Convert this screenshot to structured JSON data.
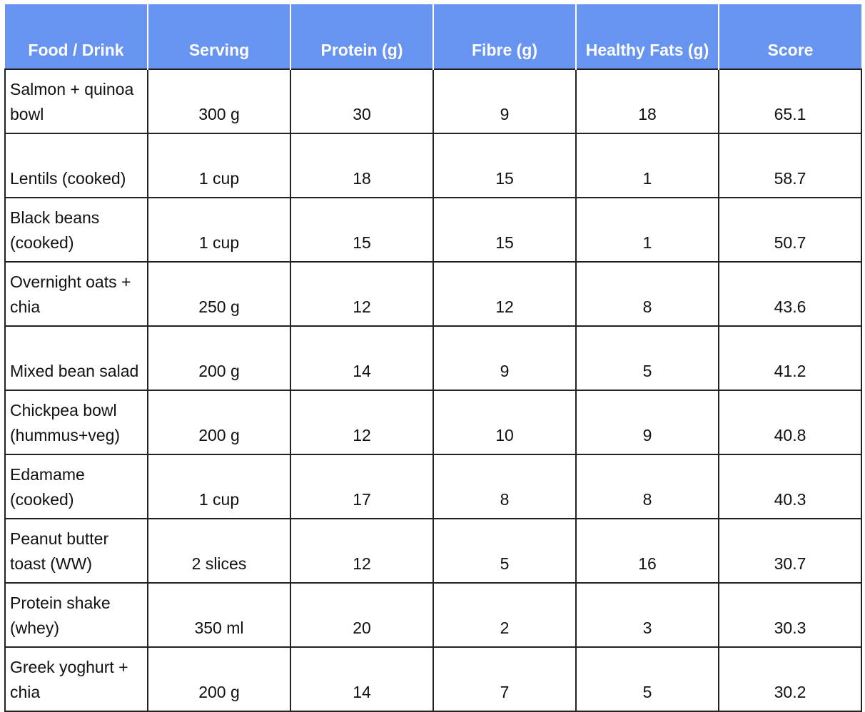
{
  "table": {
    "headers": [
      "Food / Drink",
      "Serving",
      "Protein (g)",
      "Fibre (g)",
      "Healthy Fats (g)",
      "Score"
    ],
    "header_color": "#6694f0",
    "rows": [
      [
        "Salmon + quinoa bowl",
        "300 g",
        "30",
        "9",
        "18",
        "65.1"
      ],
      [
        "Lentils (cooked)",
        "1 cup",
        "18",
        "15",
        "1",
        "58.7"
      ],
      [
        "Black beans (cooked)",
        "1 cup",
        "15",
        "15",
        "1",
        "50.7"
      ],
      [
        "Overnight oats + chia",
        "250 g",
        "12",
        "12",
        "8",
        "43.6"
      ],
      [
        "Mixed bean salad",
        "200 g",
        "14",
        "9",
        "5",
        "41.2"
      ],
      [
        "Chickpea bowl (hummus+veg)",
        "200 g",
        "12",
        "10",
        "9",
        "40.8"
      ],
      [
        "Edamame (cooked)",
        "1 cup",
        "17",
        "8",
        "8",
        "40.3"
      ],
      [
        "Peanut butter toast (WW)",
        "2 slices",
        "12",
        "5",
        "16",
        "30.7"
      ],
      [
        "Protein shake (whey)",
        "350 ml",
        "20",
        "2",
        "3",
        "30.3"
      ],
      [
        "Greek yoghurt + chia",
        "200 g",
        "14",
        "7",
        "5",
        "30.2"
      ]
    ]
  }
}
